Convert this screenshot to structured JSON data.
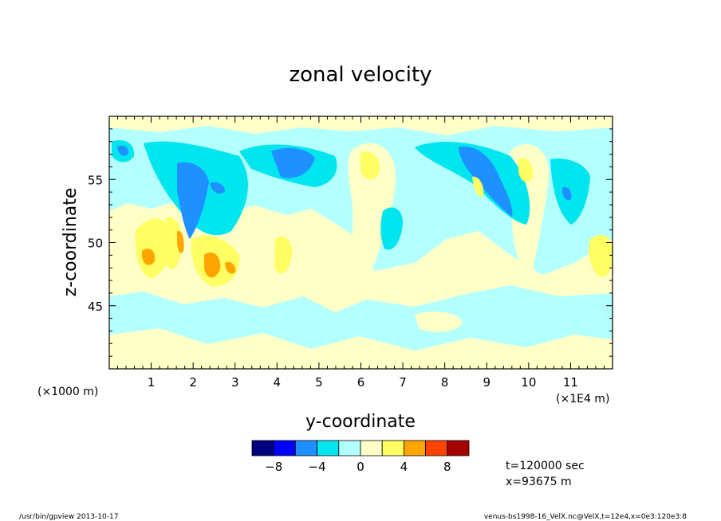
{
  "chart_data": {
    "type": "heatmap",
    "title": "zonal velocity",
    "xlabel": "y-coordinate",
    "ylabel": "z-coordinate",
    "x_unit_left": "(×1000 m)",
    "x_unit_right": "(×1E4 m)",
    "xlim": [
      0,
      12
    ],
    "ylim": [
      40,
      60
    ],
    "x_ticks": [
      "1",
      "2",
      "3",
      "4",
      "5",
      "6",
      "7",
      "8",
      "9",
      "10",
      "11"
    ],
    "y_ticks": [
      "45",
      "50",
      "55"
    ],
    "grid": false,
    "colorbar": {
      "levels": [
        -10,
        -8,
        -6,
        -4,
        -2,
        0,
        2,
        4,
        6,
        8,
        10
      ],
      "tick_labels": [
        "−8",
        "−4",
        "0",
        "4",
        "8"
      ],
      "colors": [
        "#00007f",
        "#0000ff",
        "#1e90ff",
        "#00e5ee",
        "#b4ffff",
        "#ffffc8",
        "#ffff64",
        "#ffa500",
        "#ff4500",
        "#a50000"
      ]
    },
    "field_summary": {
      "background_range": [
        -2,
        2
      ],
      "strong_negative_core": [
        {
          "y": 1.9,
          "z": 54.5,
          "value": -6
        },
        {
          "y": 3.9,
          "z": 56.5,
          "value": -6
        },
        {
          "y": 8.5,
          "z": 56.0,
          "value": -6
        }
      ],
      "strong_positive_core": [
        {
          "y": 1.0,
          "z": 48.7,
          "value": 5
        },
        {
          "y": 2.4,
          "z": 48.5,
          "value": 5
        },
        {
          "y": 1.7,
          "z": 49.0,
          "value": 4
        }
      ]
    },
    "info": [
      "t=120000 sec",
      "x=93675 m"
    ]
  },
  "footer": {
    "left": "/usr/bin/gpview   2013-10-17",
    "right": "venus-bs1998-16_VelX.nc@VelX,t=12e4,x=0e3:120e3:8"
  }
}
